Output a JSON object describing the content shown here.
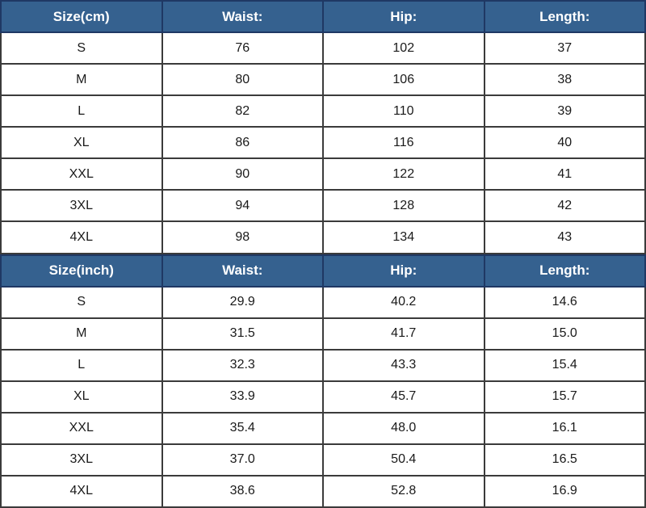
{
  "colors": {
    "header_bg": "#35618F",
    "header_divider": "#1F3864",
    "grid_border": "#3B3B3B",
    "header_text": "#FFFFFF",
    "body_text": "#1A1A1A"
  },
  "chart_data": [
    {
      "type": "table",
      "title": "Size(cm)",
      "columns": [
        "Size(cm)",
        "Waist:",
        "Hip:",
        "Length:"
      ],
      "rows": [
        [
          "S",
          "76",
          "102",
          "37"
        ],
        [
          "M",
          "80",
          "106",
          "38"
        ],
        [
          "L",
          "82",
          "110",
          "39"
        ],
        [
          "XL",
          "86",
          "116",
          "40"
        ],
        [
          "XXL",
          "90",
          "122",
          "41"
        ],
        [
          "3XL",
          "94",
          "128",
          "42"
        ],
        [
          "4XL",
          "98",
          "134",
          "43"
        ]
      ]
    },
    {
      "type": "table",
      "title": "Size(inch)",
      "columns": [
        "Size(inch)",
        "Waist:",
        "Hip:",
        "Length:"
      ],
      "rows": [
        [
          "S",
          "29.9",
          "40.2",
          "14.6"
        ],
        [
          "M",
          "31.5",
          "41.7",
          "15.0"
        ],
        [
          "L",
          "32.3",
          "43.3",
          "15.4"
        ],
        [
          "XL",
          "33.9",
          "45.7",
          "15.7"
        ],
        [
          "XXL",
          "35.4",
          "48.0",
          "16.1"
        ],
        [
          "3XL",
          "37.0",
          "50.4",
          "16.5"
        ],
        [
          "4XL",
          "38.6",
          "52.8",
          "16.9"
        ]
      ]
    }
  ]
}
